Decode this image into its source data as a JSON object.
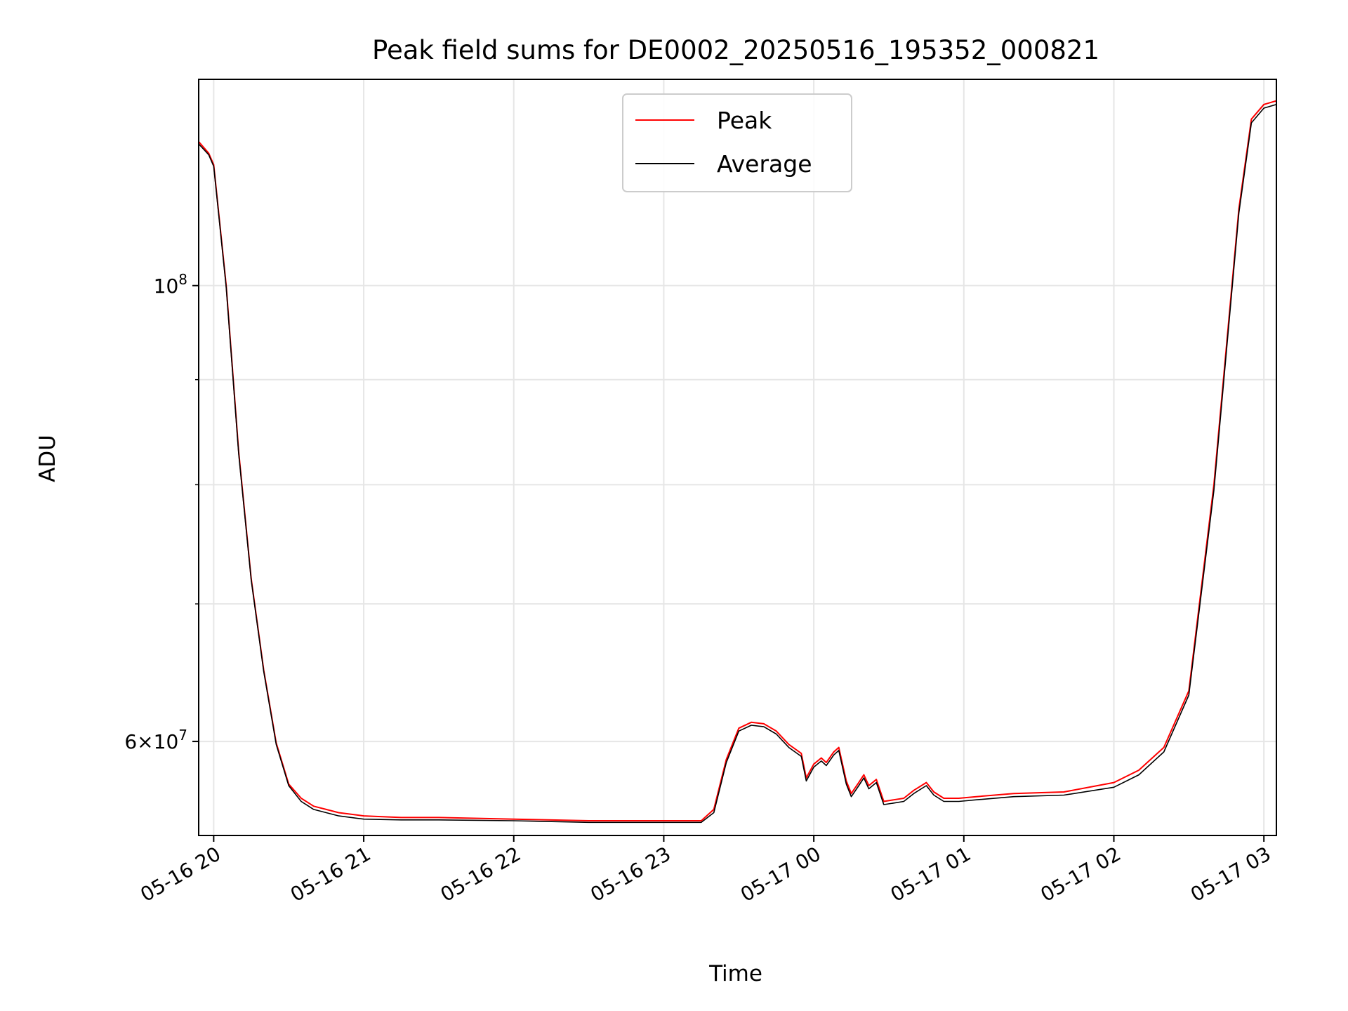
{
  "chart_data": {
    "type": "line",
    "title": "Peak field sums for DE0002_20250516_195352_000821",
    "xlabel": "Time",
    "ylabel": "ADU",
    "x_scale": "time",
    "y_scale": "log",
    "xlim": [
      "2025-05-16 19:54",
      "2025-05-17 03:05"
    ],
    "ylim": [
      54000000,
      126000000
    ],
    "x_ticks": [
      {
        "value": "2025-05-16 20:00",
        "label": "05-16 20"
      },
      {
        "value": "2025-05-16 21:00",
        "label": "05-16 21"
      },
      {
        "value": "2025-05-16 22:00",
        "label": "05-16 22"
      },
      {
        "value": "2025-05-16 23:00",
        "label": "05-16 23"
      },
      {
        "value": "2025-05-17 00:00",
        "label": "05-17 00"
      },
      {
        "value": "2025-05-17 01:00",
        "label": "05-17 01"
      },
      {
        "value": "2025-05-17 02:00",
        "label": "05-17 02"
      },
      {
        "value": "2025-05-17 03:00",
        "label": "05-17 03"
      }
    ],
    "y_major_ticks": [
      {
        "value": 100000000,
        "base": "10",
        "exp": "8",
        "mant": ""
      },
      {
        "value": 60000000,
        "base": "10",
        "exp": "7",
        "mant": "6"
      }
    ],
    "y_minor_ticks": [
      70000000,
      80000000,
      90000000
    ],
    "grid": true,
    "legend": {
      "position": "top-center"
    },
    "series": [
      {
        "name": "Peak",
        "color": "#ff0000",
        "x": [
          "2025-05-16 19:54",
          "2025-05-16 19:58",
          "2025-05-16 20:00",
          "2025-05-16 20:05",
          "2025-05-16 20:10",
          "2025-05-16 20:15",
          "2025-05-16 20:20",
          "2025-05-16 20:25",
          "2025-05-16 20:30",
          "2025-05-16 20:35",
          "2025-05-16 20:40",
          "2025-05-16 20:45",
          "2025-05-16 20:50",
          "2025-05-16 21:00",
          "2025-05-16 21:15",
          "2025-05-16 21:30",
          "2025-05-16 22:00",
          "2025-05-16 22:30",
          "2025-05-16 23:00",
          "2025-05-16 23:15",
          "2025-05-16 23:20",
          "2025-05-16 23:25",
          "2025-05-16 23:30",
          "2025-05-16 23:35",
          "2025-05-16 23:40",
          "2025-05-16 23:45",
          "2025-05-16 23:50",
          "2025-05-16 23:55",
          "2025-05-16 23:57",
          "2025-05-17 00:00",
          "2025-05-17 00:03",
          "2025-05-17 00:05",
          "2025-05-17 00:08",
          "2025-05-17 00:10",
          "2025-05-17 00:13",
          "2025-05-17 00:15",
          "2025-05-17 00:18",
          "2025-05-17 00:20",
          "2025-05-17 00:22",
          "2025-05-17 00:25",
          "2025-05-17 00:28",
          "2025-05-17 00:32",
          "2025-05-17 00:36",
          "2025-05-17 00:40",
          "2025-05-17 00:45",
          "2025-05-17 00:48",
          "2025-05-17 00:52",
          "2025-05-17 00:58",
          "2025-05-17 01:05",
          "2025-05-17 01:20",
          "2025-05-17 01:40",
          "2025-05-17 02:00",
          "2025-05-17 02:10",
          "2025-05-17 02:20",
          "2025-05-17 02:30",
          "2025-05-17 02:40",
          "2025-05-17 02:50",
          "2025-05-17 02:55",
          "2025-05-17 03:00",
          "2025-05-17 03:05"
        ],
        "y": [
          117500000,
          116000000,
          114500000,
          100000000,
          83000000,
          72000000,
          65000000,
          59900000,
          57200000,
          56300000,
          55800000,
          55600000,
          55400000,
          55200000,
          55100000,
          55100000,
          55000000,
          54900000,
          54900000,
          54900000,
          55600000,
          58800000,
          60900000,
          61300000,
          61200000,
          60700000,
          59800000,
          59200000,
          57600000,
          58500000,
          58900000,
          58600000,
          59300000,
          59600000,
          57400000,
          56600000,
          57300000,
          57800000,
          57100000,
          57500000,
          56100000,
          56200000,
          56300000,
          56800000,
          57300000,
          56700000,
          56300000,
          56300000,
          56400000,
          56600000,
          56700000,
          57300000,
          58100000,
          59600000,
          63500000,
          80000000,
          109000000,
          120500000,
          122500000,
          123000000
        ]
      },
      {
        "name": "Average",
        "color": "#000000",
        "x": [
          "2025-05-16 19:54",
          "2025-05-16 19:58",
          "2025-05-16 20:00",
          "2025-05-16 20:05",
          "2025-05-16 20:10",
          "2025-05-16 20:15",
          "2025-05-16 20:20",
          "2025-05-16 20:25",
          "2025-05-16 20:30",
          "2025-05-16 20:35",
          "2025-05-16 20:40",
          "2025-05-16 20:45",
          "2025-05-16 20:50",
          "2025-05-16 21:00",
          "2025-05-16 21:15",
          "2025-05-16 21:30",
          "2025-05-16 22:00",
          "2025-05-16 22:30",
          "2025-05-16 23:00",
          "2025-05-16 23:15",
          "2025-05-16 23:20",
          "2025-05-16 23:25",
          "2025-05-16 23:30",
          "2025-05-16 23:35",
          "2025-05-16 23:40",
          "2025-05-16 23:45",
          "2025-05-16 23:50",
          "2025-05-16 23:55",
          "2025-05-16 23:57",
          "2025-05-17 00:00",
          "2025-05-17 00:03",
          "2025-05-17 00:05",
          "2025-05-17 00:08",
          "2025-05-17 00:10",
          "2025-05-17 00:13",
          "2025-05-17 00:15",
          "2025-05-17 00:18",
          "2025-05-17 00:20",
          "2025-05-17 00:22",
          "2025-05-17 00:25",
          "2025-05-17 00:28",
          "2025-05-17 00:32",
          "2025-05-17 00:36",
          "2025-05-17 00:40",
          "2025-05-17 00:45",
          "2025-05-17 00:48",
          "2025-05-17 00:52",
          "2025-05-17 00:58",
          "2025-05-17 01:05",
          "2025-05-17 01:20",
          "2025-05-17 01:40",
          "2025-05-17 02:00",
          "2025-05-17 02:10",
          "2025-05-17 02:20",
          "2025-05-17 02:30",
          "2025-05-17 02:40",
          "2025-05-17 02:50",
          "2025-05-17 02:55",
          "2025-05-17 03:00",
          "2025-05-17 03:05"
        ],
        "y": [
          117200000,
          115800000,
          114300000,
          99800000,
          82800000,
          71900000,
          64900000,
          59800000,
          57100000,
          56100000,
          55600000,
          55400000,
          55200000,
          55000000,
          54950000,
          54950000,
          54900000,
          54800000,
          54800000,
          54800000,
          55400000,
          58600000,
          60700000,
          61100000,
          61000000,
          60500000,
          59600000,
          59000000,
          57400000,
          58300000,
          58700000,
          58400000,
          59100000,
          59400000,
          57200000,
          56400000,
          57100000,
          57600000,
          56900000,
          57300000,
          55900000,
          56000000,
          56100000,
          56600000,
          57100000,
          56500000,
          56100000,
          56100000,
          56200000,
          56400000,
          56500000,
          57000000,
          57800000,
          59300000,
          63200000,
          79500000,
          108500000,
          120000000,
          122000000,
          122500000
        ]
      }
    ]
  }
}
